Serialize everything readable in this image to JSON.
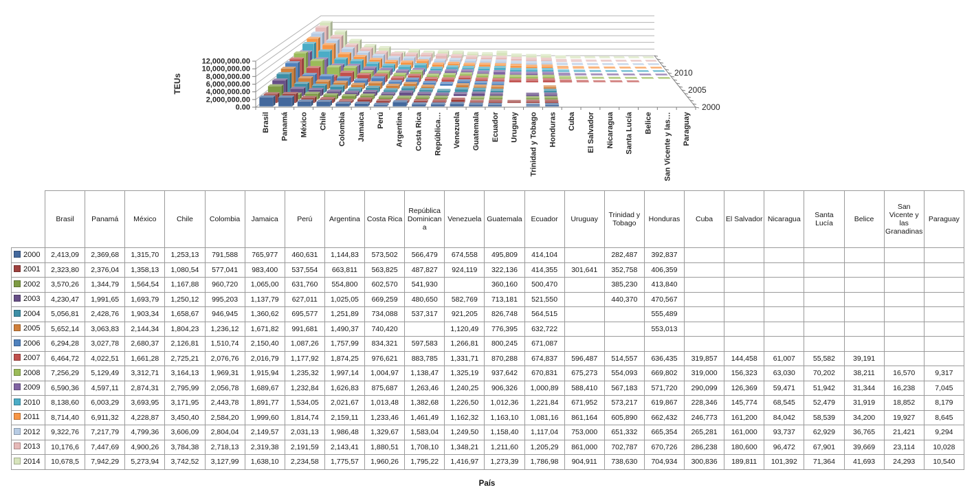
{
  "chart_data": {
    "type": "bar",
    "subtype": "3d-depth-series",
    "title": "",
    "ylabel": "TEUs",
    "xlabel": "País",
    "ylim": [
      0,
      12000000
    ],
    "grid": true,
    "value_axis_ticks": [
      "0.00",
      "2,000,000.00",
      "4,000,000.00",
      "6,000,000.00",
      "8,000,000.00",
      "10,000,000.00",
      "12,000,000.00"
    ],
    "depth_axis_ticks": [
      "2000",
      "2005",
      "2010"
    ],
    "category_tick_labels": [
      "Brasil",
      "Panamá",
      "México",
      "Chile",
      "Colombia",
      "Jamaica",
      "Perú",
      "Argentina",
      "Costa Rica",
      "República…",
      "Venezuela",
      "Guatemala",
      "Ecuador",
      "Uruguay",
      "Trinidad y Tobago",
      "Honduras",
      "Cuba",
      "El Salvador",
      "Nicaragua",
      "Santa Lucía",
      "Belice",
      "San Vicente y las…",
      "Paraguay"
    ],
    "categories": [
      "Brasil",
      "Panamá",
      "México",
      "Chile",
      "Colombia",
      "Jamaica",
      "Perú",
      "Argentina",
      "Costa Rica",
      "República Dominicana",
      "Venezuela",
      "Guatemala",
      "Ecuador",
      "Uruguay",
      "Trinidad y Tobago",
      "Honduras",
      "Cuba",
      "El Salvador",
      "Nicaragua",
      "Santa Lucía",
      "Belice",
      "San Vicente y las Granadinas",
      "Paraguay"
    ],
    "series": [
      {
        "name": "2000",
        "color": "#44699D",
        "values": [
          2413090,
          2369680,
          1315700,
          1253130,
          791588,
          765977,
          460631,
          1144830,
          573502,
          566479,
          674558,
          495809,
          414104,
          null,
          282487,
          392837,
          null,
          null,
          null,
          null,
          null,
          null,
          null
        ]
      },
      {
        "name": "2001",
        "color": "#9E413E",
        "values": [
          2323800,
          2376040,
          1358130,
          1080540,
          577041,
          983400,
          537554,
          663811,
          563825,
          487827,
          924119,
          322136,
          414355,
          301641,
          352758,
          406359,
          null,
          null,
          null,
          null,
          null,
          null,
          null
        ]
      },
      {
        "name": "2002",
        "color": "#7E9B44",
        "values": [
          3570260,
          1344790,
          1564540,
          1167880,
          960720,
          1065000,
          631760,
          554800,
          602570,
          541930,
          null,
          360160,
          500470,
          null,
          385230,
          413840,
          null,
          null,
          null,
          null,
          null,
          null,
          null
        ]
      },
      {
        "name": "2003",
        "color": "#674F87",
        "values": [
          4230470,
          1991650,
          1693790,
          1250120,
          995203,
          1137790,
          627011,
          1025050,
          669259,
          480650,
          582769,
          713181,
          521550,
          null,
          440370,
          470567,
          null,
          null,
          null,
          null,
          null,
          null,
          null
        ]
      },
      {
        "name": "2004",
        "color": "#3E8FA6",
        "values": [
          5056810,
          2428760,
          1903340,
          1658670,
          946945,
          1360620,
          695577,
          1251890,
          734088,
          537317,
          921205,
          826748,
          564515,
          null,
          null,
          555489,
          null,
          null,
          null,
          null,
          null,
          null,
          null
        ]
      },
      {
        "name": "2005",
        "color": "#D0803B",
        "values": [
          5652140,
          3063830,
          2144340,
          1804230,
          1236120,
          1671820,
          991681,
          1490370,
          740420,
          null,
          1120490,
          776395,
          632722,
          null,
          null,
          553013,
          null,
          null,
          null,
          null,
          null,
          null,
          null
        ]
      },
      {
        "name": "2006",
        "color": "#4F81BD",
        "values": [
          6294280,
          3027780,
          2680370,
          2126810,
          1510740,
          2150400,
          1087260,
          1757990,
          834321,
          597583,
          1266810,
          800245,
          671087,
          null,
          null,
          null,
          null,
          null,
          null,
          null,
          null,
          null,
          null
        ]
      },
      {
        "name": "2007",
        "color": "#C0504D",
        "values": [
          6464720,
          4022510,
          1661280,
          2725210,
          2076760,
          2016790,
          1177920,
          1874250,
          976621,
          883785,
          1331710,
          870288,
          674837,
          596487,
          514557,
          636435,
          319857,
          144458,
          61007,
          55582,
          39191,
          null,
          null
        ]
      },
      {
        "name": "2008",
        "color": "#9BBB59",
        "values": [
          7256290,
          5129490,
          3312710,
          3164130,
          1969310,
          1915940,
          1235320,
          1997140,
          1004970,
          1138470,
          1325190,
          937642,
          670831,
          675273,
          554093,
          669802,
          319000,
          156323,
          63030,
          70202,
          38211,
          16570,
          9317
        ]
      },
      {
        "name": "2009",
        "color": "#8064A2",
        "values": [
          6590360,
          4597110,
          2874310,
          2795990,
          2056780,
          1689670,
          1232840,
          1626830,
          875687,
          1263460,
          1240250,
          906326,
          1000890,
          588410,
          567183,
          571720,
          290099,
          126369,
          59471,
          51942,
          31344,
          16238,
          7045
        ]
      },
      {
        "name": "2010",
        "color": "#4BACC6",
        "values": [
          8138600,
          6003290,
          3693950,
          3171950,
          2443780,
          1891770,
          1534050,
          2021670,
          1013480,
          1382680,
          1226500,
          1012360,
          1221840,
          671952,
          573217,
          619867,
          228346,
          145774,
          68545,
          52479,
          31919,
          18852,
          8179
        ]
      },
      {
        "name": "2011",
        "color": "#F79646",
        "values": [
          8714400,
          6911320,
          4228870,
          3450400,
          2584200,
          1999600,
          1814740,
          2159110,
          1233460,
          1461490,
          1162320,
          1163100,
          1081160,
          861164,
          605890,
          662432,
          246773,
          161200,
          84042,
          58539,
          34200,
          19927,
          8645
        ]
      },
      {
        "name": "2012",
        "color": "#B8CCE4",
        "values": [
          9322760,
          7217790,
          4799360,
          3606090,
          2804040,
          2149570,
          2031130,
          1986480,
          1329670,
          1583040,
          1249500,
          1158400,
          1117040,
          753000,
          651332,
          665354,
          265281,
          161000,
          93737,
          62929,
          36765,
          21421,
          9294
        ]
      },
      {
        "name": "2013",
        "color": "#E6B9B8",
        "values": [
          10176600,
          7447690,
          4900260,
          3784380,
          2718130,
          2319380,
          2191590,
          2143410,
          1880510,
          1708100,
          1348210,
          1211600,
          1205290,
          861000,
          702787,
          670726,
          286238,
          180600,
          96472,
          67901,
          39669,
          23114,
          10028
        ]
      },
      {
        "name": "2014",
        "color": "#D7E4BC",
        "values": [
          10678500,
          7942290,
          5273940,
          3742520,
          3127990,
          1638100,
          2234580,
          1775570,
          1960260,
          1795220,
          1416970,
          1273390,
          1786980,
          904911,
          738630,
          704934,
          300836,
          189811,
          101392,
          71364,
          41693,
          24293,
          10540
        ]
      }
    ]
  },
  "table": {
    "corner_label": "",
    "columns": [
      "Brasil",
      "Panamá",
      "México",
      "Chile",
      "Colombia",
      "Jamaica",
      "Perú",
      "Argentina",
      "Costa Rica",
      "República Dominicana",
      "Venezuela",
      "Guatemala",
      "Ecuador",
      "Uruguay",
      "Trinidad y Tobago",
      "Honduras",
      "Cuba",
      "El Salvador",
      "Nicaragua",
      "Santa Lucía",
      "Belice",
      "San Vicente y las Granadinas",
      "Paraguay"
    ],
    "rows": [
      {
        "year": "2000",
        "swatch": "#44699D",
        "cells": [
          "2,413,09",
          "2,369,68",
          "1,315,70",
          "1,253,13",
          "791,588",
          "765,977",
          "460,631",
          "1,144,83",
          "573,502",
          "566,479",
          "674,558",
          "495,809",
          "414,104",
          "",
          "282,487",
          "392,837",
          "",
          "",
          "",
          "",
          "",
          "",
          ""
        ]
      },
      {
        "year": "2001",
        "swatch": "#9E413E",
        "cells": [
          "2,323,80",
          "2,376,04",
          "1,358,13",
          "1,080,54",
          "577,041",
          "983,400",
          "537,554",
          "663,811",
          "563,825",
          "487,827",
          "924,119",
          "322,136",
          "414,355",
          "301,641",
          "352,758",
          "406,359",
          "",
          "",
          "",
          "",
          "",
          "",
          ""
        ]
      },
      {
        "year": "2002",
        "swatch": "#7E9B44",
        "cells": [
          "3,570,26",
          "1,344,79",
          "1,564,54",
          "1,167,88",
          "960,720",
          "1,065,00",
          "631,760",
          "554,800",
          "602,570",
          "541,930",
          "",
          "360,160",
          "500,470",
          "",
          "385,230",
          "413,840",
          "",
          "",
          "",
          "",
          "",
          "",
          ""
        ]
      },
      {
        "year": "2003",
        "swatch": "#674F87",
        "cells": [
          "4,230,47",
          "1,991,65",
          "1,693,79",
          "1,250,12",
          "995,203",
          "1,137,79",
          "627,011",
          "1,025,05",
          "669,259",
          "480,650",
          "582,769",
          "713,181",
          "521,550",
          "",
          "440,370",
          "470,567",
          "",
          "",
          "",
          "",
          "",
          "",
          ""
        ]
      },
      {
        "year": "2004",
        "swatch": "#3E8FA6",
        "cells": [
          "5,056,81",
          "2,428,76",
          "1,903,34",
          "1,658,67",
          "946,945",
          "1,360,62",
          "695,577",
          "1,251,89",
          "734,088",
          "537,317",
          "921,205",
          "826,748",
          "564,515",
          "",
          "",
          "555,489",
          "",
          "",
          "",
          "",
          "",
          "",
          ""
        ]
      },
      {
        "year": "2005",
        "swatch": "#D0803B",
        "cells": [
          "5,652,14",
          "3,063,83",
          "2,144,34",
          "1,804,23",
          "1,236,12",
          "1,671,82",
          "991,681",
          "1,490,37",
          "740,420",
          "",
          "1,120,49",
          "776,395",
          "632,722",
          "",
          "",
          "553,013",
          "",
          "",
          "",
          "",
          "",
          "",
          ""
        ]
      },
      {
        "year": "2006",
        "swatch": "#4F81BD",
        "cells": [
          "6,294,28",
          "3,027,78",
          "2,680,37",
          "2,126,81",
          "1,510,74",
          "2,150,40",
          "1,087,26",
          "1,757,99",
          "834,321",
          "597,583",
          "1,266,81",
          "800,245",
          "671,087",
          "",
          "",
          "",
          "",
          "",
          "",
          "",
          "",
          "",
          ""
        ]
      },
      {
        "year": "2007",
        "swatch": "#C0504D",
        "cells": [
          "6,464,72",
          "4,022,51",
          "1,661,28",
          "2,725,21",
          "2,076,76",
          "2,016,79",
          "1,177,92",
          "1,874,25",
          "976,621",
          "883,785",
          "1,331,71",
          "870,288",
          "674,837",
          "596,487",
          "514,557",
          "636,435",
          "319,857",
          "144,458",
          "61,007",
          "55,582",
          "39,191",
          "",
          ""
        ]
      },
      {
        "year": "2008",
        "swatch": "#9BBB59",
        "cells": [
          "7,256,29",
          "5,129,49",
          "3,312,71",
          "3,164,13",
          "1,969,31",
          "1,915,94",
          "1,235,32",
          "1,997,14",
          "1,004,97",
          "1,138,47",
          "1,325,19",
          "937,642",
          "670,831",
          "675,273",
          "554,093",
          "669,802",
          "319,000",
          "156,323",
          "63,030",
          "70,202",
          "38,211",
          "16,570",
          "9,317"
        ]
      },
      {
        "year": "2009",
        "swatch": "#8064A2",
        "cells": [
          "6,590,36",
          "4,597,11",
          "2,874,31",
          "2,795,99",
          "2,056,78",
          "1,689,67",
          "1,232,84",
          "1,626,83",
          "875,687",
          "1,263,46",
          "1,240,25",
          "906,326",
          "1,000,89",
          "588,410",
          "567,183",
          "571,720",
          "290,099",
          "126,369",
          "59,471",
          "51,942",
          "31,344",
          "16,238",
          "7,045"
        ]
      },
      {
        "year": "2010",
        "swatch": "#4BACC6",
        "cells": [
          "8,138,60",
          "6,003,29",
          "3,693,95",
          "3,171,95",
          "2,443,78",
          "1,891,77",
          "1,534,05",
          "2,021,67",
          "1,013,48",
          "1,382,68",
          "1,226,50",
          "1,012,36",
          "1,221,84",
          "671,952",
          "573,217",
          "619,867",
          "228,346",
          "145,774",
          "68,545",
          "52,479",
          "31,919",
          "18,852",
          "8,179"
        ]
      },
      {
        "year": "2011",
        "swatch": "#F79646",
        "cells": [
          "8,714,40",
          "6,911,32",
          "4,228,87",
          "3,450,40",
          "2,584,20",
          "1,999,60",
          "1,814,74",
          "2,159,11",
          "1,233,46",
          "1,461,49",
          "1,162,32",
          "1,163,10",
          "1,081,16",
          "861,164",
          "605,890",
          "662,432",
          "246,773",
          "161,200",
          "84,042",
          "58,539",
          "34,200",
          "19,927",
          "8,645"
        ]
      },
      {
        "year": "2012",
        "swatch": "#B8CCE4",
        "cells": [
          "9,322,76",
          "7,217,79",
          "4,799,36",
          "3,606,09",
          "2,804,04",
          "2,149,57",
          "2,031,13",
          "1,986,48",
          "1,329,67",
          "1,583,04",
          "1,249,50",
          "1,158,40",
          "1,117,04",
          "753,000",
          "651,332",
          "665,354",
          "265,281",
          "161,000",
          "93,737",
          "62,929",
          "36,765",
          "21,421",
          "9,294"
        ]
      },
      {
        "year": "2013",
        "swatch": "#E6B9B8",
        "cells": [
          "10,176,6",
          "7,447,69",
          "4,900,26",
          "3,784,38",
          "2,718,13",
          "2,319,38",
          "2,191,59",
          "2,143,41",
          "1,880,51",
          "1,708,10",
          "1,348,21",
          "1,211,60",
          "1,205,29",
          "861,000",
          "702,787",
          "670,726",
          "286,238",
          "180,600",
          "96,472",
          "67,901",
          "39,669",
          "23,114",
          "10,028"
        ]
      },
      {
        "year": "2014",
        "swatch": "#D7E4BC",
        "cells": [
          "10,678,5",
          "7,942,29",
          "5,273,94",
          "3,742,52",
          "3,127,99",
          "1,638,10",
          "2,234,58",
          "1,775,57",
          "1,960,26",
          "1,795,22",
          "1,416,97",
          "1,273,39",
          "1,786,98",
          "904,911",
          "738,630",
          "704,934",
          "300,836",
          "189,811",
          "101,392",
          "71,364",
          "41,693",
          "24,293",
          "10,540"
        ]
      }
    ]
  }
}
